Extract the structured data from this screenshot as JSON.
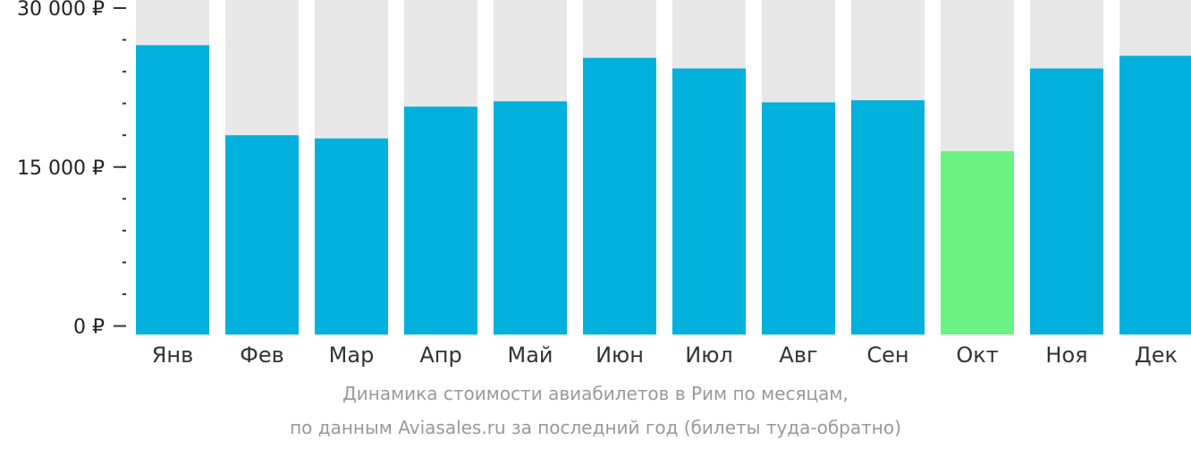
{
  "colors": {
    "bar": "#02b0dc",
    "bar_highlight": "#6cf384",
    "track": "#e8e8e8",
    "axis": "#333333"
  },
  "caption": {
    "line1": "Динамика стоимости авиабилетов в Рим по месяцам,",
    "line2": "по данным Aviasales.ru за последний год (билеты туда-обратно)"
  },
  "chart_data": {
    "type": "bar",
    "categories": [
      "Янв",
      "Фев",
      "Мар",
      "Апр",
      "Май",
      "Июн",
      "Июл",
      "Авг",
      "Сен",
      "Окт",
      "Ноя",
      "Дек"
    ],
    "values": [
      26500,
      18000,
      17700,
      20700,
      21200,
      25300,
      24300,
      21100,
      21300,
      16500,
      24300,
      25500
    ],
    "highlight": "Окт",
    "ylim": [
      0,
      31500
    ],
    "yticks": [
      {
        "value": 0,
        "label": "0 ₽"
      },
      {
        "value": 15000,
        "label": "15 000 ₽"
      },
      {
        "value": 30000,
        "label": "30 000 ₽"
      }
    ],
    "minor_tick_step": 3000,
    "title": "",
    "xlabel": "",
    "ylabel": ""
  }
}
